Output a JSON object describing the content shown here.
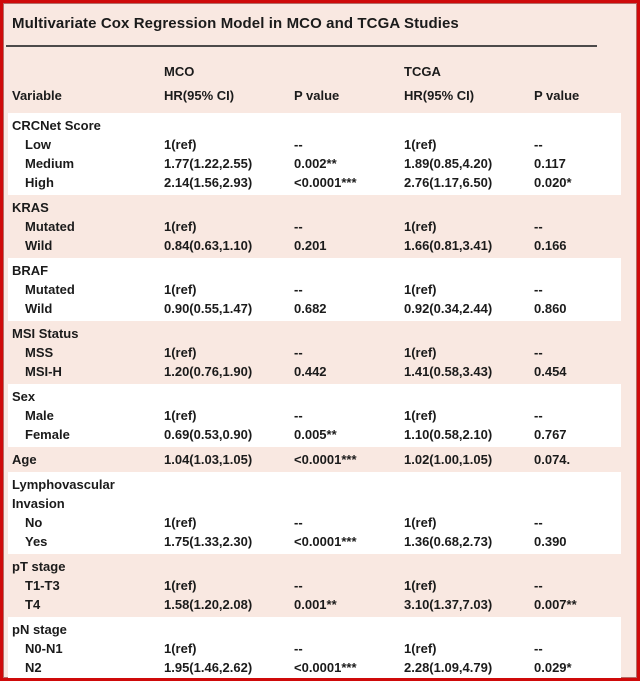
{
  "title": "Multivariate Cox Regression Model in MCO and TCGA Studies",
  "header": {
    "mco_label": "MCO",
    "tcga_label": "TCGA",
    "variable_label": "Variable",
    "mco_hr_label": "HR(95% CI)",
    "mco_p_label": "P value",
    "tcga_hr_label": "HR(95% CI)",
    "tcga_p_label": "P value"
  },
  "colors": {
    "border_red": "#cf0a0a",
    "background_pink": "#f9e8e1",
    "stripe_white": "#ffffff",
    "rule_gray": "#4d4a4a",
    "text": "#1b1b1b"
  },
  "chart_data": {
    "type": "table",
    "title": "Multivariate Cox Regression Model in MCO and TCGA Studies",
    "columns": [
      "Variable",
      "MCO HR(95% CI)",
      "MCO P value",
      "TCGA HR(95% CI)",
      "TCGA P value"
    ]
  },
  "groups": [
    {
      "shade": "white",
      "rows": [
        {
          "label": "CRCNet Score",
          "indent": false,
          "cells": [
            "",
            "",
            "",
            ""
          ]
        },
        {
          "label": "Low",
          "indent": true,
          "cells": [
            "1(ref)",
            "--",
            "1(ref)",
            "--"
          ]
        },
        {
          "label": "Medium",
          "indent": true,
          "cells": [
            "1.77(1.22,2.55)",
            "0.002**",
            "1.89(0.85,4.20)",
            "0.117"
          ]
        },
        {
          "label": "High",
          "indent": true,
          "cells": [
            "2.14(1.56,2.93)",
            "<0.0001***",
            "2.76(1.17,6.50)",
            "0.020*"
          ]
        }
      ]
    },
    {
      "shade": "pink",
      "rows": [
        {
          "label": "KRAS",
          "indent": false,
          "cells": [
            "",
            "",
            "",
            ""
          ]
        },
        {
          "label": "Mutated",
          "indent": true,
          "cells": [
            "1(ref)",
            "--",
            "1(ref)",
            "--"
          ]
        },
        {
          "label": "Wild",
          "indent": true,
          "cells": [
            "0.84(0.63,1.10)",
            "0.201",
            "1.66(0.81,3.41)",
            "0.166"
          ]
        }
      ]
    },
    {
      "shade": "white",
      "rows": [
        {
          "label": "BRAF",
          "indent": false,
          "cells": [
            "",
            "",
            "",
            ""
          ]
        },
        {
          "label": "Mutated",
          "indent": true,
          "cells": [
            "1(ref)",
            "--",
            "1(ref)",
            "--"
          ]
        },
        {
          "label": "Wild",
          "indent": true,
          "cells": [
            "0.90(0.55,1.47)",
            "0.682",
            "0.92(0.34,2.44)",
            "0.860"
          ]
        }
      ]
    },
    {
      "shade": "pink",
      "rows": [
        {
          "label": "MSI Status",
          "indent": false,
          "cells": [
            "",
            "",
            "",
            ""
          ]
        },
        {
          "label": "MSS",
          "indent": true,
          "cells": [
            "1(ref)",
            "--",
            "1(ref)",
            "--"
          ]
        },
        {
          "label": "MSI-H",
          "indent": true,
          "cells": [
            "1.20(0.76,1.90)",
            "0.442",
            "1.41(0.58,3.43)",
            "0.454"
          ]
        }
      ]
    },
    {
      "shade": "white",
      "rows": [
        {
          "label": "Sex",
          "indent": false,
          "cells": [
            "",
            "",
            "",
            ""
          ]
        },
        {
          "label": "Male",
          "indent": true,
          "cells": [
            "1(ref)",
            "--",
            "1(ref)",
            "--"
          ]
        },
        {
          "label": "Female",
          "indent": true,
          "cells": [
            "0.69(0.53,0.90)",
            "0.005**",
            "1.10(0.58,2.10)",
            "0.767"
          ]
        }
      ]
    },
    {
      "shade": "pink",
      "rows": [
        {
          "label": "Age",
          "indent": false,
          "cells": [
            "1.04(1.03,1.05)",
            "<0.0001***",
            "1.02(1.00,1.05)",
            "0.074."
          ]
        }
      ]
    },
    {
      "shade": "white",
      "rows": [
        {
          "label": "Lymphovascular\nInvasion",
          "indent": false,
          "cells": [
            "",
            "",
            "",
            ""
          ]
        },
        {
          "label": "No",
          "indent": true,
          "cells": [
            "1(ref)",
            "--",
            "1(ref)",
            "--"
          ]
        },
        {
          "label": "Yes",
          "indent": true,
          "cells": [
            "1.75(1.33,2.30)",
            "<0.0001***",
            "1.36(0.68,2.73)",
            "0.390"
          ]
        }
      ]
    },
    {
      "shade": "pink",
      "rows": [
        {
          "label": "pT stage",
          "indent": false,
          "cells": [
            "",
            "",
            "",
            ""
          ]
        },
        {
          "label": "T1-T3",
          "indent": true,
          "cells": [
            "1(ref)",
            "--",
            "1(ref)",
            "--"
          ]
        },
        {
          "label": "T4",
          "indent": true,
          "cells": [
            "1.58(1.20,2.08)",
            "0.001**",
            "3.10(1.37,7.03)",
            "0.007**"
          ]
        }
      ]
    },
    {
      "shade": "white",
      "rows": [
        {
          "label": "pN stage",
          "indent": false,
          "cells": [
            "",
            "",
            "",
            ""
          ]
        },
        {
          "label": "N0-N1",
          "indent": true,
          "cells": [
            "1(ref)",
            "--",
            "1(ref)",
            "--"
          ]
        },
        {
          "label": "N2",
          "indent": true,
          "cells": [
            "1.95(1.46,2.62)",
            "<0.0001***",
            "2.28(1.09,4.79)",
            "0.029*"
          ]
        }
      ]
    }
  ]
}
